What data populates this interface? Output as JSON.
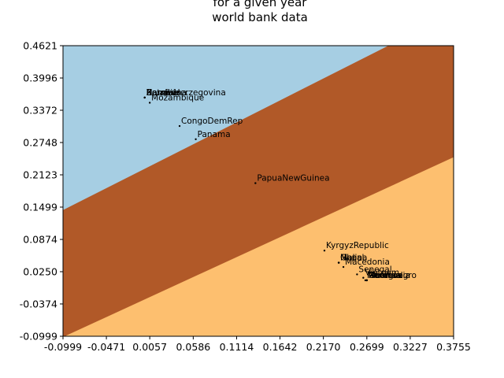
{
  "chart_data": {
    "type": "scatter",
    "title_lines": [
      "for a given year",
      "world bank data"
    ],
    "xlim": [
      -0.0999,
      0.3755
    ],
    "ylim": [
      -0.0999,
      0.4621
    ],
    "x_ticks": [
      "-0.0999",
      "-0.0471",
      "0.0057",
      "0.0586",
      "0.1114",
      "0.1642",
      "0.2170",
      "0.2699",
      "0.3227",
      "0.3755"
    ],
    "y_ticks": [
      "0.4621",
      "0.3996",
      "0.3372",
      "0.2748",
      "0.2123",
      "0.1499",
      "0.0874",
      "0.0250",
      "-0.0374",
      "-0.0999"
    ],
    "regions": [
      {
        "name": "upper",
        "color": "#a6cee3"
      },
      {
        "name": "middle",
        "color": "#b15928"
      },
      {
        "name": "lower",
        "color": "#fdbf6f"
      }
    ],
    "boundaries": [
      {
        "between": [
          "upper",
          "middle"
        ],
        "x1": -0.0999,
        "y1": 0.1442,
        "x2": 0.3755,
        "y2": 0.5258
      },
      {
        "between": [
          "middle",
          "lower"
        ],
        "x1": -0.0999,
        "y1": -0.1014,
        "x2": 0.3755,
        "y2": 0.2464
      }
    ],
    "points": [
      {
        "label": "Mozambique",
        "x": 0.0057,
        "y": 0.3517
      },
      {
        "label": "Namibia",
        "x": -0.0005,
        "y": 0.3617
      },
      {
        "label": "Botswana",
        "x": -0.0005,
        "y": 0.3617
      },
      {
        "label": "Zambia",
        "x": -0.0005,
        "y": 0.3617
      },
      {
        "label": "BosniaHerzegovina",
        "x": -0.0005,
        "y": 0.3617
      },
      {
        "label": "CongoDemRep",
        "x": 0.042,
        "y": 0.3067
      },
      {
        "label": "Panama",
        "x": 0.0617,
        "y": 0.2812
      },
      {
        "label": "PapuaNewGuinea",
        "x": 0.1343,
        "y": 0.1962
      },
      {
        "label": "KyrgyzRepublic",
        "x": 0.2183,
        "y": 0.0658
      },
      {
        "label": "Ghana",
        "x": 0.2357,
        "y": 0.0424
      },
      {
        "label": "Nepal",
        "x": 0.2357,
        "y": 0.0424
      },
      {
        "label": "Mali",
        "x": 0.2357,
        "y": 0.0424
      },
      {
        "label": "Macedonia",
        "x": 0.2414,
        "y": 0.0341
      },
      {
        "label": "Senegal",
        "x": 0.258,
        "y": 0.0198
      },
      {
        "label": "Vietnam",
        "x": 0.2656,
        "y": 0.0132
      },
      {
        "label": "Montenegro",
        "x": 0.2681,
        "y": 0.0083
      },
      {
        "label": "Cambodia",
        "x": 0.2699,
        "y": 0.0083
      },
      {
        "label": "Georgia",
        "x": 0.2699,
        "y": 0.0083
      },
      {
        "label": "Moldova",
        "x": 0.2699,
        "y": 0.0083
      },
      {
        "label": "Rwanda",
        "x": 0.2699,
        "y": 0.0083
      }
    ]
  }
}
